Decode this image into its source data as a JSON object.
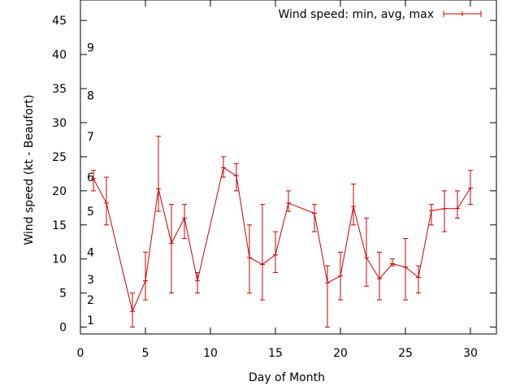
{
  "chart_data": {
    "type": "line",
    "title": "",
    "xlabel": "Day of Month",
    "ylabel": "Wind speed (kt - Beaufort)",
    "xlim": [
      0,
      32
    ],
    "ylim": [
      -1,
      48
    ],
    "xticks": [
      0,
      5,
      10,
      15,
      20,
      25,
      30
    ],
    "yticks": [
      0,
      5,
      10,
      15,
      20,
      25,
      30,
      35,
      40,
      45
    ],
    "grid": false,
    "legend_position": "top-right",
    "series": [
      {
        "name": "Wind speed: min, avg, max",
        "color": "#cc0000",
        "points": [
          {
            "x": 1,
            "avg": 21.8,
            "min": 20.0,
            "max": 23.0
          },
          {
            "x": 2,
            "avg": 18.2,
            "min": 15.0,
            "max": 22.0
          },
          {
            "x": 4,
            "avg": 2.3,
            "min": 0.0,
            "max": 5.0
          },
          {
            "x": 5,
            "avg": 6.8,
            "min": 4.0,
            "max": 11.0
          },
          {
            "x": 6,
            "avg": 20.3,
            "min": 17.0,
            "max": 28.0
          },
          {
            "x": 7,
            "avg": 12.3,
            "min": 5.0,
            "max": 18.0
          },
          {
            "x": 8,
            "avg": 16.0,
            "min": 13.0,
            "max": 18.0
          },
          {
            "x": 9,
            "avg": 6.8,
            "min": 5.0,
            "max": 8.0
          },
          {
            "x": 11,
            "avg": 23.4,
            "min": 22.0,
            "max": 25.0
          },
          {
            "x": 12,
            "avg": 22.2,
            "min": 20.0,
            "max": 24.0
          },
          {
            "x": 13,
            "avg": 10.2,
            "min": 5.0,
            "max": 15.0
          },
          {
            "x": 14,
            "avg": 9.2,
            "min": 4.0,
            "max": 18.0
          },
          {
            "x": 15,
            "avg": 10.6,
            "min": 8.0,
            "max": 14.0
          },
          {
            "x": 16,
            "avg": 18.2,
            "min": 17.0,
            "max": 20.0
          },
          {
            "x": 18,
            "avg": 16.7,
            "min": 14.0,
            "max": 18.0
          },
          {
            "x": 19,
            "avg": 6.5,
            "min": 0.0,
            "max": 9.0
          },
          {
            "x": 20,
            "avg": 7.5,
            "min": 4.0,
            "max": 11.0
          },
          {
            "x": 21,
            "avg": 17.7,
            "min": 15.0,
            "max": 21.0
          },
          {
            "x": 22,
            "avg": 10.2,
            "min": 6.0,
            "max": 16.0
          },
          {
            "x": 23,
            "avg": 7.1,
            "min": 4.0,
            "max": 11.0
          },
          {
            "x": 24,
            "avg": 9.3,
            "min": 9.0,
            "max": 10.0
          },
          {
            "x": 25,
            "avg": 8.8,
            "min": 4.0,
            "max": 13.0
          },
          {
            "x": 26,
            "avg": 7.3,
            "min": 5.0,
            "max": 9.0
          },
          {
            "x": 27,
            "avg": 17.1,
            "min": 15.0,
            "max": 18.0
          },
          {
            "x": 28,
            "avg": 17.4,
            "min": 14.0,
            "max": 20.0
          },
          {
            "x": 29,
            "avg": 17.4,
            "min": 16.0,
            "max": 20.0
          },
          {
            "x": 30,
            "avg": 20.4,
            "min": 18.0,
            "max": 23.0
          }
        ]
      }
    ],
    "beaufort_labels": [
      {
        "label": "1",
        "y": 1
      },
      {
        "label": "2",
        "y": 4
      },
      {
        "label": "3",
        "y": 7
      },
      {
        "label": "4",
        "y": 11
      },
      {
        "label": "5",
        "y": 17
      },
      {
        "label": "6",
        "y": 22
      },
      {
        "label": "7",
        "y": 28
      },
      {
        "label": "8",
        "y": 34
      },
      {
        "label": "9",
        "y": 41
      }
    ]
  }
}
